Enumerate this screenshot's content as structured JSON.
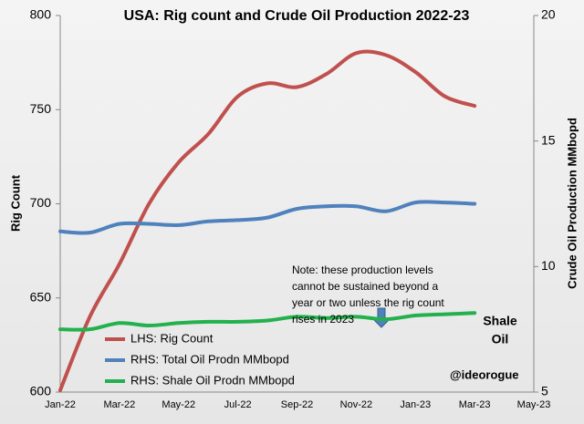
{
  "chart_data": {
    "type": "line",
    "title": "USA: Rig count and Crude Oil Production 2022-23",
    "y_label": "Rig Count",
    "y2_label": "Crude Oil Production MMbopd",
    "categories": [
      "Jan-22",
      null,
      "Mar-22",
      null,
      "May-22",
      null,
      "Jul-22",
      null,
      "Sep-22",
      null,
      "Nov-22",
      null,
      "Jan-23",
      null,
      "Mar-23",
      null,
      "May-23"
    ],
    "series": [
      {
        "name": "LHS: Rig Count",
        "color": "#c0504d",
        "values": [
          601,
          640,
          668,
          700,
          722,
          737,
          757,
          764,
          762,
          769,
          780,
          779,
          770,
          757,
          752,
          null,
          null
        ]
      },
      {
        "name": "RHS: Total Oil Prodn MMbopd",
        "color": "#4f81bd",
        "axis": "y2",
        "values": [
          11.4,
          11.35,
          11.7,
          11.7,
          11.65,
          11.8,
          11.85,
          11.95,
          12.3,
          12.4,
          12.4,
          12.2,
          12.55,
          12.55,
          12.5,
          null,
          null
        ]
      },
      {
        "name": "RHS: Shale Oil Prodn MMbopd",
        "color": "#22b14c",
        "axis": "y2",
        "values": [
          7.5,
          7.5,
          7.75,
          7.65,
          7.75,
          7.8,
          7.8,
          7.85,
          8.0,
          7.95,
          8.0,
          7.9,
          8.05,
          8.1,
          8.15,
          null,
          null
        ]
      }
    ],
    "ylim": [
      600,
      800
    ],
    "yticks": [
      600,
      650,
      700,
      750,
      800
    ],
    "y2lim": [
      5,
      20
    ],
    "y2ticks": [
      5,
      10,
      15,
      20
    ],
    "grid": false,
    "legend": "lower left",
    "note": [
      "Note: these production levels",
      "cannot be sustained beyond a",
      "year or two unless the rig count",
      "rises in 2023"
    ],
    "shale_label": [
      "Shale",
      "Oil"
    ],
    "credit": "@ideorogue"
  }
}
